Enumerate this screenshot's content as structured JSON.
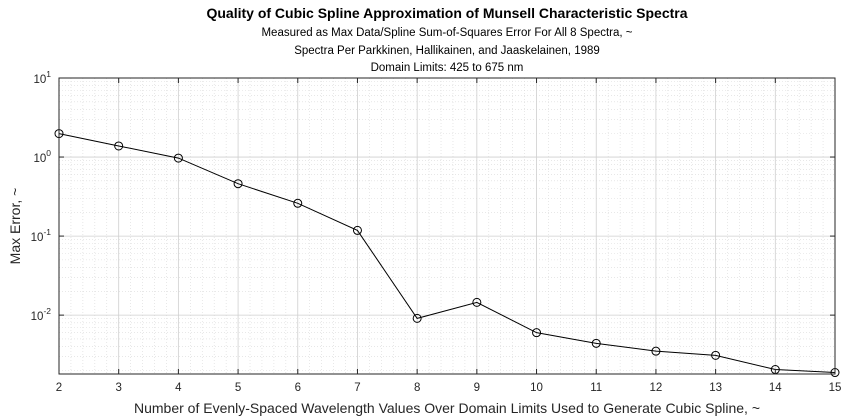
{
  "chart_data": {
    "type": "line",
    "title": "Quality of Cubic Spline Approximation of Munsell Characteristic Spectra",
    "subtitle_lines": [
      "Measured as Max Data/Spline Sum-of-Squares Error For All 8 Spectra, ~",
      "Spectra Per Parkkinen, Hallikainen, and Jaaskelainen, 1989",
      "Domain Limits: 425 to 675 nm"
    ],
    "xlabel": "Number of Evenly-Spaced Wavelength Values Over Domain Limits Used to Generate Cubic Spline, ~",
    "ylabel": "Max Error, ~",
    "x": [
      2,
      3,
      4,
      5,
      6,
      7,
      8,
      9,
      10,
      11,
      12,
      13,
      14,
      15
    ],
    "y": [
      1.98,
      1.38,
      0.97,
      0.46,
      0.26,
      0.118,
      0.0091,
      0.0145,
      0.006,
      0.0044,
      0.0035,
      0.0031,
      0.00205,
      0.00188
    ],
    "xlim": [
      2,
      15
    ],
    "ylim": [
      0.0018,
      10
    ],
    "yscale": "log",
    "x_ticks": [
      "2",
      "3",
      "4",
      "5",
      "6",
      "7",
      "8",
      "9",
      "10",
      "11",
      "12",
      "13",
      "14",
      "15"
    ],
    "y_ticks": [
      {
        "base": "10",
        "exp": "-2"
      },
      {
        "base": "10",
        "exp": "-1"
      },
      {
        "base": "10",
        "exp": "0"
      },
      {
        "base": "10",
        "exp": "1"
      }
    ],
    "grid": true,
    "marker": "open-circle",
    "line_color": "#000000"
  }
}
